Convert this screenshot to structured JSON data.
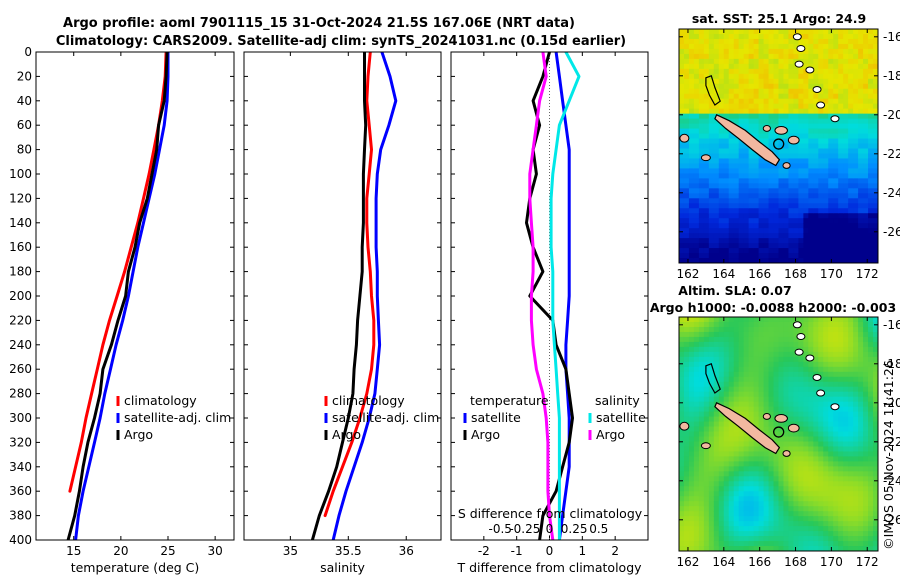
{
  "header": {
    "title_line1": "Argo profile: aoml 7901115_15 31-Oct-2024 21.5S 167.06E (NRT data)",
    "title_line2": "Climatology: CARS2009. Satellite-adj clim: synTS_20241031.nc (0.15d earlier)"
  },
  "side_label": "©IMOS 05-Nov-2024 11:41:26",
  "colors": {
    "climatology": "#ff0000",
    "satellite": "#0000ff",
    "argo": "#000000",
    "sat_salinity": "#00e8e8",
    "argo_salinity": "#ff00ff"
  },
  "chart_data": [
    {
      "type": "line",
      "id": "temperature",
      "xlabel": "temperature (deg C)",
      "ylabel": "depth",
      "xlim": [
        11,
        32
      ],
      "ylim": [
        0,
        400
      ],
      "yreversed": true,
      "xticks": [
        15,
        20,
        25,
        30
      ],
      "yticks": [
        0,
        20,
        40,
        60,
        80,
        100,
        120,
        140,
        160,
        180,
        200,
        220,
        240,
        260,
        280,
        300,
        320,
        340,
        360,
        380,
        400
      ],
      "legend": [
        "climatology",
        "satellite-adj. clim",
        "Argo"
      ],
      "series": [
        {
          "name": "climatology",
          "color": "#ff0000",
          "x": [
            24.8,
            24.7,
            24.4,
            24.0,
            23.5,
            23.0,
            22.4,
            21.8,
            21.1,
            20.4,
            19.6,
            18.8,
            18.1,
            17.5,
            16.9,
            16.3,
            15.8,
            15.2,
            14.6
          ],
          "depth": [
            0,
            20,
            40,
            60,
            80,
            100,
            120,
            140,
            160,
            180,
            200,
            220,
            240,
            260,
            280,
            300,
            320,
            340,
            360
          ]
        },
        {
          "name": "satellite-adj. clim",
          "color": "#0000ff",
          "x": [
            25.0,
            25.0,
            24.9,
            24.6,
            24.1,
            23.6,
            23.0,
            22.4,
            21.8,
            21.3,
            20.8,
            20.2,
            19.5,
            18.9,
            18.3,
            17.8,
            17.2,
            16.6,
            16.0,
            15.5,
            15.2
          ],
          "depth": [
            0,
            20,
            40,
            60,
            80,
            100,
            120,
            140,
            160,
            180,
            200,
            220,
            240,
            260,
            280,
            300,
            320,
            340,
            360,
            380,
            400
          ]
        },
        {
          "name": "Argo",
          "color": "#000000",
          "x": [
            24.9,
            24.8,
            24.6,
            24.0,
            23.8,
            23.3,
            22.8,
            22.0,
            21.5,
            20.8,
            20.5,
            19.7,
            19.0,
            18.1,
            17.8,
            17.2,
            16.5,
            16.0,
            15.6,
            15.1,
            14.4
          ],
          "depth": [
            0,
            20,
            40,
            60,
            80,
            100,
            120,
            140,
            160,
            180,
            200,
            220,
            240,
            260,
            280,
            300,
            320,
            340,
            360,
            380,
            400
          ]
        }
      ]
    },
    {
      "type": "line",
      "id": "salinity",
      "xlabel": "salinity",
      "ylabel": "depth",
      "xlim": [
        34.6,
        36.3
      ],
      "ylim": [
        0,
        400
      ],
      "yreversed": true,
      "xticks": [
        35,
        35.5,
        36
      ],
      "legend": [
        "climatology",
        "satellite-adj. clim",
        "Argo"
      ],
      "series": [
        {
          "name": "climatology",
          "color": "#ff0000",
          "x": [
            35.69,
            35.67,
            35.66,
            35.68,
            35.7,
            35.68,
            35.66,
            35.66,
            35.67,
            35.69,
            35.7,
            35.72,
            35.72,
            35.7,
            35.66,
            35.6,
            35.53,
            35.45,
            35.37,
            35.3
          ],
          "depth": [
            0,
            20,
            40,
            60,
            80,
            100,
            120,
            140,
            160,
            180,
            200,
            220,
            240,
            260,
            280,
            300,
            320,
            340,
            360,
            380
          ]
        },
        {
          "name": "satellite-adj. clim",
          "color": "#0000ff",
          "x": [
            35.79,
            35.86,
            35.91,
            35.85,
            35.78,
            35.75,
            35.74,
            35.74,
            35.74,
            35.75,
            35.75,
            35.76,
            35.77,
            35.75,
            35.73,
            35.68,
            35.62,
            35.55,
            35.48,
            35.42,
            35.37
          ],
          "depth": [
            0,
            20,
            40,
            60,
            80,
            100,
            120,
            140,
            160,
            180,
            200,
            220,
            240,
            260,
            280,
            300,
            320,
            340,
            360,
            380,
            400
          ]
        },
        {
          "name": "Argo",
          "color": "#000000",
          "x": [
            35.64,
            35.64,
            35.64,
            35.65,
            35.64,
            35.63,
            35.63,
            35.63,
            35.62,
            35.62,
            35.6,
            35.58,
            35.57,
            35.55,
            35.54,
            35.5,
            35.45,
            35.4,
            35.33,
            35.25,
            35.19
          ],
          "depth": [
            0,
            20,
            40,
            60,
            80,
            100,
            120,
            140,
            160,
            180,
            200,
            220,
            240,
            260,
            280,
            300,
            320,
            340,
            360,
            380,
            400
          ]
        }
      ]
    },
    {
      "type": "line",
      "id": "differences",
      "xlabel": "T difference from climatology",
      "x2label": "S difference from climatology",
      "xlim": [
        -3,
        3
      ],
      "ylim": [
        0,
        400
      ],
      "yreversed": true,
      "xticks": [
        -2,
        -1,
        0,
        1,
        2
      ],
      "x2ticks": [
        {
          "label": "-0.5",
          "t": -1.5
        },
        {
          "label": "-0.25",
          "t": -0.75
        },
        {
          "label": "0",
          "t": 0
        },
        {
          "label": "0.25",
          "t": 0.75
        },
        {
          "label": "0.5",
          "t": 1.5
        }
      ],
      "legend_left_title": "temperature",
      "legend_right_title": "salinity",
      "legend": [
        "satellite",
        "Argo",
        "satellite",
        "Argo"
      ],
      "series": [
        {
          "name": "temperature satellite",
          "color": "#0000ff",
          "x": [
            0.2,
            0.3,
            0.4,
            0.5,
            0.6,
            0.6,
            0.6,
            0.6,
            0.6,
            0.6,
            0.6,
            0.55,
            0.5,
            0.5,
            0.55,
            0.6,
            0.6,
            0.6,
            0.5,
            0.4,
            0.3
          ],
          "depth": [
            0,
            20,
            40,
            60,
            80,
            100,
            120,
            140,
            160,
            180,
            200,
            220,
            240,
            260,
            280,
            300,
            320,
            340,
            360,
            380,
            400
          ]
        },
        {
          "name": "temperature Argo",
          "color": "#000000",
          "x": [
            0.0,
            -0.2,
            -0.5,
            -0.3,
            -0.5,
            -0.4,
            -0.6,
            -0.7,
            -0.5,
            -0.2,
            -0.6,
            0.1,
            0.2,
            0.5,
            0.6,
            0.7,
            0.6,
            0.4,
            0.2,
            -0.2,
            -0.3
          ],
          "depth": [
            0,
            20,
            40,
            60,
            80,
            100,
            120,
            140,
            160,
            180,
            200,
            220,
            240,
            260,
            280,
            300,
            320,
            340,
            360,
            380,
            400
          ]
        },
        {
          "name": "salinity satellite",
          "color": "#00e8e8",
          "x": [
            0.5,
            0.9,
            0.6,
            0.3,
            0.2,
            0.1,
            0.05,
            0.05,
            0.05,
            0.1,
            0.1,
            0.1,
            0.15,
            0.2,
            0.25,
            0.3,
            0.3,
            0.3,
            0.3,
            0.3,
            0.3
          ],
          "depth": [
            0,
            20,
            40,
            60,
            80,
            100,
            120,
            140,
            160,
            180,
            200,
            220,
            240,
            260,
            280,
            300,
            320,
            340,
            360,
            380,
            400
          ]
        },
        {
          "name": "salinity Argo",
          "color": "#ff00ff",
          "x": [
            -0.2,
            -0.1,
            -0.3,
            -0.4,
            -0.5,
            -0.6,
            -0.6,
            -0.55,
            -0.5,
            -0.5,
            -0.55,
            -0.55,
            -0.5,
            -0.4,
            -0.2,
            -0.1,
            -0.05,
            -0.05,
            -0.05,
            0.0,
            0.1
          ],
          "depth": [
            0,
            20,
            40,
            60,
            80,
            100,
            120,
            140,
            160,
            180,
            200,
            220,
            240,
            260,
            280,
            300,
            320,
            340,
            360,
            380,
            400
          ]
        }
      ]
    },
    {
      "type": "heatmap",
      "id": "sst_map",
      "title": "sat. SST: 25.1 Argo: 24.9",
      "xlim": [
        161.5,
        172.6
      ],
      "ylim": [
        -27.6,
        -15.6
      ],
      "xticks": [
        162,
        164,
        166,
        168,
        170,
        172
      ],
      "yticks": [
        -16,
        -18,
        -20,
        -22,
        -24,
        -26
      ],
      "argo_position": {
        "lon": 167.06,
        "lat": -21.5
      }
    },
    {
      "type": "heatmap",
      "id": "sla_map",
      "title": "Altim. SLA: 0.07",
      "subtitle": "Argo h1000: -0.0088 h2000: -0.003",
      "xlim": [
        161.5,
        172.6
      ],
      "ylim": [
        -27.6,
        -15.6
      ],
      "xticks": [
        162,
        164,
        166,
        168,
        170,
        172
      ],
      "yticks": [
        -16,
        -18,
        -20,
        -22,
        -24,
        -26
      ],
      "argo_position": {
        "lon": 167.06,
        "lat": -21.5
      }
    }
  ]
}
